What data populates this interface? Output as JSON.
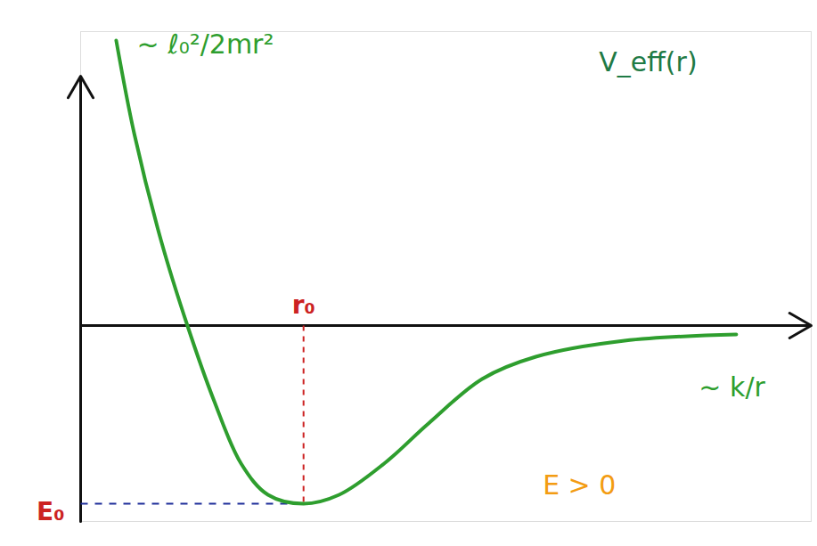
{
  "chart_data": {
    "type": "line",
    "x": [
      0.57,
      0.86,
      1.29,
      1.71,
      2.14,
      2.57,
      3.0,
      3.57,
      4.14,
      4.86,
      5.57,
      6.43,
      7.29,
      8.71,
      10.5
    ],
    "values": [
      6.4,
      4.3,
      1.9,
      0,
      -1.7,
      -3.1,
      -3.8,
      -4.0,
      -3.8,
      -3.1,
      -2.2,
      -1.2,
      -0.7,
      -0.34,
      -0.2
    ],
    "color": "#2e9e2e",
    "xlim": [
      0,
      11.7
    ],
    "ylim": [
      -4.4,
      6.6
    ],
    "xticks": [],
    "yticks": [],
    "tick_labels": false,
    "grid": false,
    "annotations": [
      {
        "text": "~ ℓ₀²/2mr²",
        "x": 0.9,
        "y": 6.3,
        "color": "#2e9e2e"
      },
      {
        "text": "V_eff(r)",
        "x": 8.3,
        "y": 5.9,
        "color": "#1f7a45"
      },
      {
        "text": "~ k/r",
        "x": 9.9,
        "y": -1.4,
        "color": "#2e9e2e"
      },
      {
        "text": "E > 0",
        "x": 7.4,
        "y": -3.6,
        "color": "#f39c12"
      }
    ],
    "markers": [
      {
        "label": "r₀",
        "axis": "x",
        "value": 3.57,
        "color": "#cc2222",
        "label_color": "#cc2222"
      },
      {
        "label": "E₀",
        "axis": "y",
        "value": -4.0,
        "color": "#1f2f9a",
        "label_color": "#cc2222"
      }
    ]
  }
}
